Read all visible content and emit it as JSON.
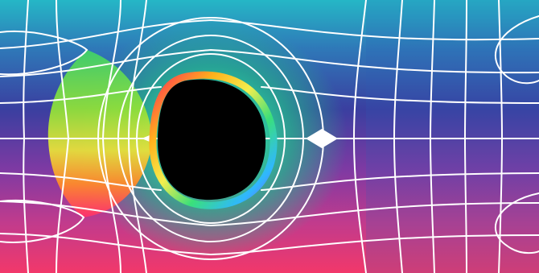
{
  "image": {
    "subject": "black-hole-lensing-panorama",
    "colors": {
      "top": "#1fb3c8",
      "upper_mid": "#3452a8",
      "lower_mid": "#8a3ba0",
      "bottom": "#e8356b",
      "grid": "#ffffff",
      "shadow": "#000000"
    },
    "regions": [
      {
        "name": "lensed-sphere-left",
        "hues": [
          "#2ecc71",
          "#b5e63a",
          "#f7c52c",
          "#ff3d6e"
        ]
      },
      {
        "name": "photon-ring",
        "hues": [
          "#ff2d55",
          "#ff9f1c",
          "#f4e04d",
          "#3ae07a",
          "#2fb7ff",
          "#7b5cff"
        ]
      },
      {
        "name": "black-hole-shadow",
        "hues": [
          "#000000"
        ]
      }
    ]
  }
}
